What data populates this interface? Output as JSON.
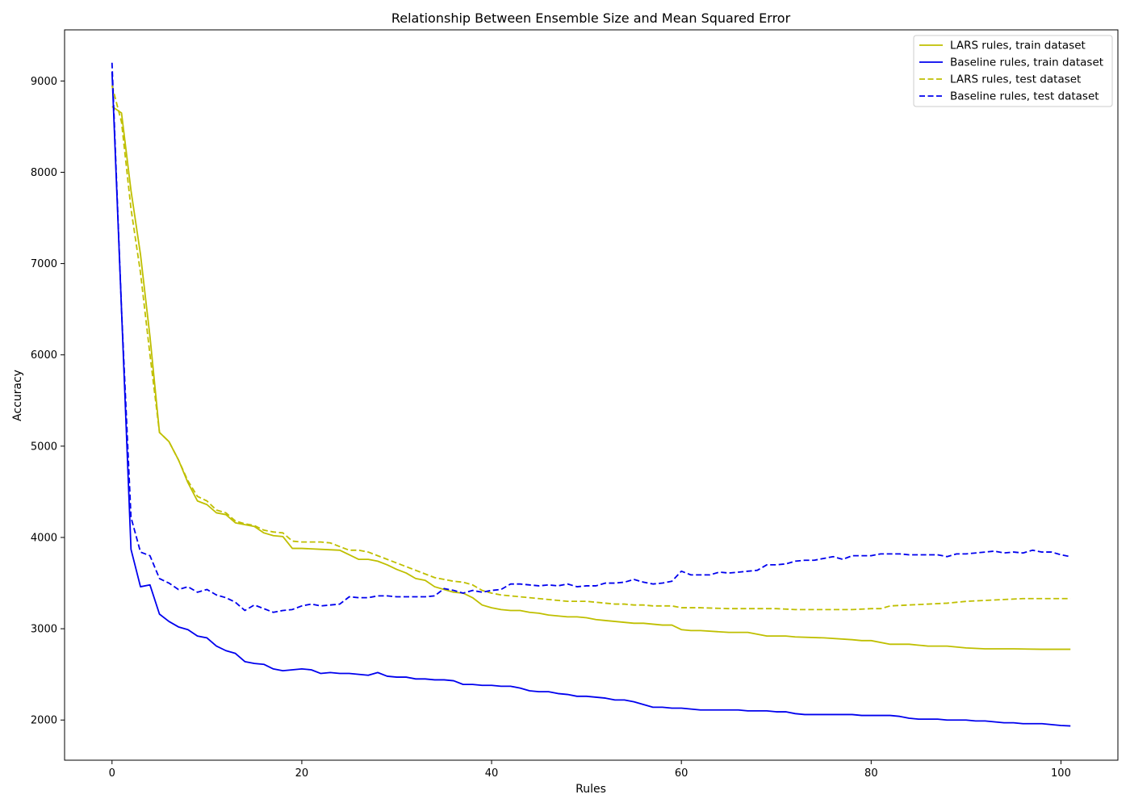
{
  "chart_data": {
    "type": "line",
    "title": "Relationship Between Ensemble Size and Mean Squared Error",
    "xlabel": "Rules",
    "ylabel": "Accuracy",
    "xlim": [
      -5,
      106
    ],
    "ylim": [
      1560,
      9560
    ],
    "xticks": [
      0,
      20,
      40,
      60,
      80,
      100
    ],
    "yticks": [
      2000,
      3000,
      4000,
      5000,
      6000,
      7000,
      8000,
      9000
    ],
    "grid": false,
    "legend_position": "top-right",
    "series": [
      {
        "name": "LARS rules, train dataset",
        "color": "#bfbf00",
        "dash": "solid",
        "x": [
          0,
          1,
          2,
          3,
          4,
          5,
          6,
          7,
          8,
          9,
          10,
          11,
          12,
          13,
          14,
          15,
          16,
          17,
          18,
          19,
          20,
          22,
          24,
          25,
          26,
          27,
          28,
          29,
          30,
          31,
          32,
          33,
          34,
          35,
          36,
          37,
          38,
          39,
          40,
          41,
          42,
          43,
          44,
          45,
          46,
          47,
          48,
          49,
          50,
          51,
          52,
          53,
          54,
          55,
          56,
          57,
          58,
          59,
          60,
          61,
          62,
          65,
          67,
          68,
          69,
          70,
          71,
          72,
          75,
          78,
          79,
          80,
          82,
          84,
          85,
          86,
          88,
          90,
          92,
          95,
          98,
          101
        ],
        "values": [
          8720,
          8650,
          7800,
          7100,
          6200,
          5150,
          5050,
          4850,
          4600,
          4400,
          4360,
          4270,
          4250,
          4160,
          4140,
          4120,
          4050,
          4020,
          4010,
          3880,
          3880,
          3870,
          3860,
          3810,
          3760,
          3760,
          3740,
          3700,
          3650,
          3610,
          3550,
          3530,
          3460,
          3430,
          3400,
          3390,
          3340,
          3260,
          3230,
          3210,
          3200,
          3200,
          3180,
          3170,
          3150,
          3140,
          3130,
          3130,
          3120,
          3100,
          3090,
          3080,
          3070,
          3060,
          3060,
          3050,
          3040,
          3040,
          2990,
          2980,
          2980,
          2960,
          2960,
          2940,
          2920,
          2920,
          2920,
          2910,
          2900,
          2880,
          2870,
          2870,
          2830,
          2830,
          2820,
          2810,
          2810,
          2790,
          2780,
          2780,
          2775,
          2775
        ]
      },
      {
        "name": "Baseline rules, train dataset",
        "color": "#0000ee",
        "dash": "solid",
        "x": [
          0,
          1,
          2,
          3,
          4,
          5,
          6,
          7,
          8,
          9,
          10,
          11,
          12,
          13,
          14,
          15,
          16,
          17,
          18,
          19,
          20,
          21,
          22,
          23,
          24,
          25,
          26,
          27,
          28,
          29,
          30,
          31,
          32,
          33,
          34,
          35,
          36,
          37,
          38,
          39,
          40,
          41,
          42,
          43,
          44,
          45,
          46,
          47,
          48,
          49,
          50,
          51,
          52,
          53,
          54,
          55,
          56,
          57,
          58,
          59,
          60,
          61,
          62,
          63,
          64,
          65,
          66,
          67,
          68,
          69,
          70,
          71,
          72,
          73,
          74,
          75,
          76,
          77,
          78,
          79,
          80,
          81,
          82,
          83,
          84,
          85,
          86,
          87,
          88,
          89,
          90,
          91,
          92,
          93,
          94,
          95,
          96,
          97,
          98,
          99,
          100,
          101
        ],
        "values": [
          9100,
          6500,
          3870,
          3460,
          3480,
          3160,
          3080,
          3020,
          2990,
          2920,
          2900,
          2810,
          2760,
          2730,
          2640,
          2620,
          2610,
          2560,
          2540,
          2550,
          2560,
          2550,
          2510,
          2520,
          2510,
          2510,
          2500,
          2490,
          2520,
          2480,
          2470,
          2470,
          2450,
          2450,
          2440,
          2440,
          2430,
          2390,
          2390,
          2380,
          2380,
          2370,
          2370,
          2350,
          2320,
          2310,
          2310,
          2290,
          2280,
          2260,
          2260,
          2250,
          2240,
          2220,
          2220,
          2200,
          2170,
          2140,
          2140,
          2130,
          2130,
          2120,
          2110,
          2110,
          2110,
          2110,
          2110,
          2100,
          2100,
          2100,
          2090,
          2090,
          2070,
          2060,
          2060,
          2060,
          2060,
          2060,
          2060,
          2050,
          2050,
          2050,
          2050,
          2040,
          2020,
          2010,
          2010,
          2010,
          2000,
          2000,
          2000,
          1990,
          1990,
          1980,
          1970,
          1970,
          1960,
          1960,
          1960,
          1950,
          1940,
          1935
        ]
      },
      {
        "name": "LARS rules, test dataset",
        "color": "#bfbf00",
        "dash": "dashed",
        "x": [
          0,
          1,
          2,
          3,
          4,
          5,
          6,
          7,
          8,
          9,
          10,
          11,
          12,
          13,
          14,
          15,
          16,
          17,
          18,
          19,
          20,
          22,
          23,
          24,
          25,
          26,
          27,
          28,
          29,
          30,
          31,
          32,
          33,
          34,
          35,
          36,
          37,
          38,
          39,
          40,
          41,
          42,
          43,
          44,
          45,
          46,
          47,
          48,
          49,
          50,
          51,
          52,
          53,
          54,
          55,
          56,
          57,
          58,
          59,
          60,
          62,
          65,
          68,
          70,
          72,
          75,
          78,
          80,
          81,
          82,
          84,
          86,
          88,
          90,
          92,
          94,
          96,
          98,
          100,
          101
        ],
        "values": [
          8950,
          8550,
          7600,
          6900,
          6000,
          5150,
          5050,
          4850,
          4620,
          4450,
          4400,
          4300,
          4270,
          4180,
          4150,
          4130,
          4080,
          4060,
          4050,
          3960,
          3950,
          3950,
          3940,
          3900,
          3860,
          3860,
          3840,
          3800,
          3760,
          3720,
          3680,
          3640,
          3600,
          3560,
          3540,
          3520,
          3510,
          3480,
          3420,
          3390,
          3370,
          3360,
          3350,
          3340,
          3330,
          3320,
          3310,
          3300,
          3300,
          3300,
          3290,
          3280,
          3270,
          3270,
          3260,
          3260,
          3250,
          3250,
          3250,
          3230,
          3230,
          3220,
          3220,
          3220,
          3210,
          3210,
          3210,
          3220,
          3220,
          3250,
          3260,
          3270,
          3280,
          3300,
          3310,
          3320,
          3330,
          3330,
          3330,
          3330
        ]
      },
      {
        "name": "Baseline rules, test dataset",
        "color": "#0000ee",
        "dash": "dashed",
        "x": [
          0,
          1,
          2,
          3,
          4,
          5,
          6,
          7,
          8,
          9,
          10,
          11,
          12,
          13,
          14,
          15,
          16,
          17,
          18,
          19,
          20,
          21,
          22,
          23,
          24,
          25,
          26,
          27,
          28,
          29,
          30,
          31,
          32,
          33,
          34,
          35,
          36,
          37,
          38,
          39,
          40,
          41,
          42,
          43,
          44,
          45,
          46,
          47,
          48,
          49,
          50,
          51,
          52,
          53,
          54,
          55,
          56,
          57,
          58,
          59,
          60,
          61,
          62,
          63,
          64,
          65,
          66,
          67,
          68,
          69,
          70,
          71,
          72,
          73,
          74,
          75,
          76,
          77,
          78,
          79,
          80,
          81,
          82,
          83,
          84,
          85,
          86,
          87,
          88,
          89,
          90,
          91,
          92,
          93,
          94,
          95,
          96,
          97,
          98,
          99,
          100,
          101
        ],
        "values": [
          9200,
          6500,
          4220,
          3840,
          3800,
          3550,
          3500,
          3430,
          3460,
          3400,
          3430,
          3370,
          3340,
          3290,
          3200,
          3260,
          3220,
          3180,
          3200,
          3210,
          3250,
          3270,
          3250,
          3260,
          3270,
          3350,
          3340,
          3340,
          3360,
          3360,
          3350,
          3350,
          3350,
          3350,
          3360,
          3440,
          3420,
          3390,
          3420,
          3400,
          3420,
          3430,
          3490,
          3490,
          3480,
          3470,
          3480,
          3470,
          3490,
          3460,
          3470,
          3470,
          3500,
          3500,
          3510,
          3540,
          3510,
          3490,
          3500,
          3520,
          3630,
          3590,
          3590,
          3590,
          3620,
          3610,
          3620,
          3630,
          3640,
          3700,
          3700,
          3710,
          3740,
          3750,
          3750,
          3770,
          3790,
          3760,
          3800,
          3800,
          3800,
          3820,
          3820,
          3820,
          3810,
          3810,
          3810,
          3810,
          3790,
          3820,
          3820,
          3830,
          3840,
          3850,
          3830,
          3840,
          3830,
          3860,
          3840,
          3840,
          3810,
          3790
        ]
      }
    ]
  }
}
